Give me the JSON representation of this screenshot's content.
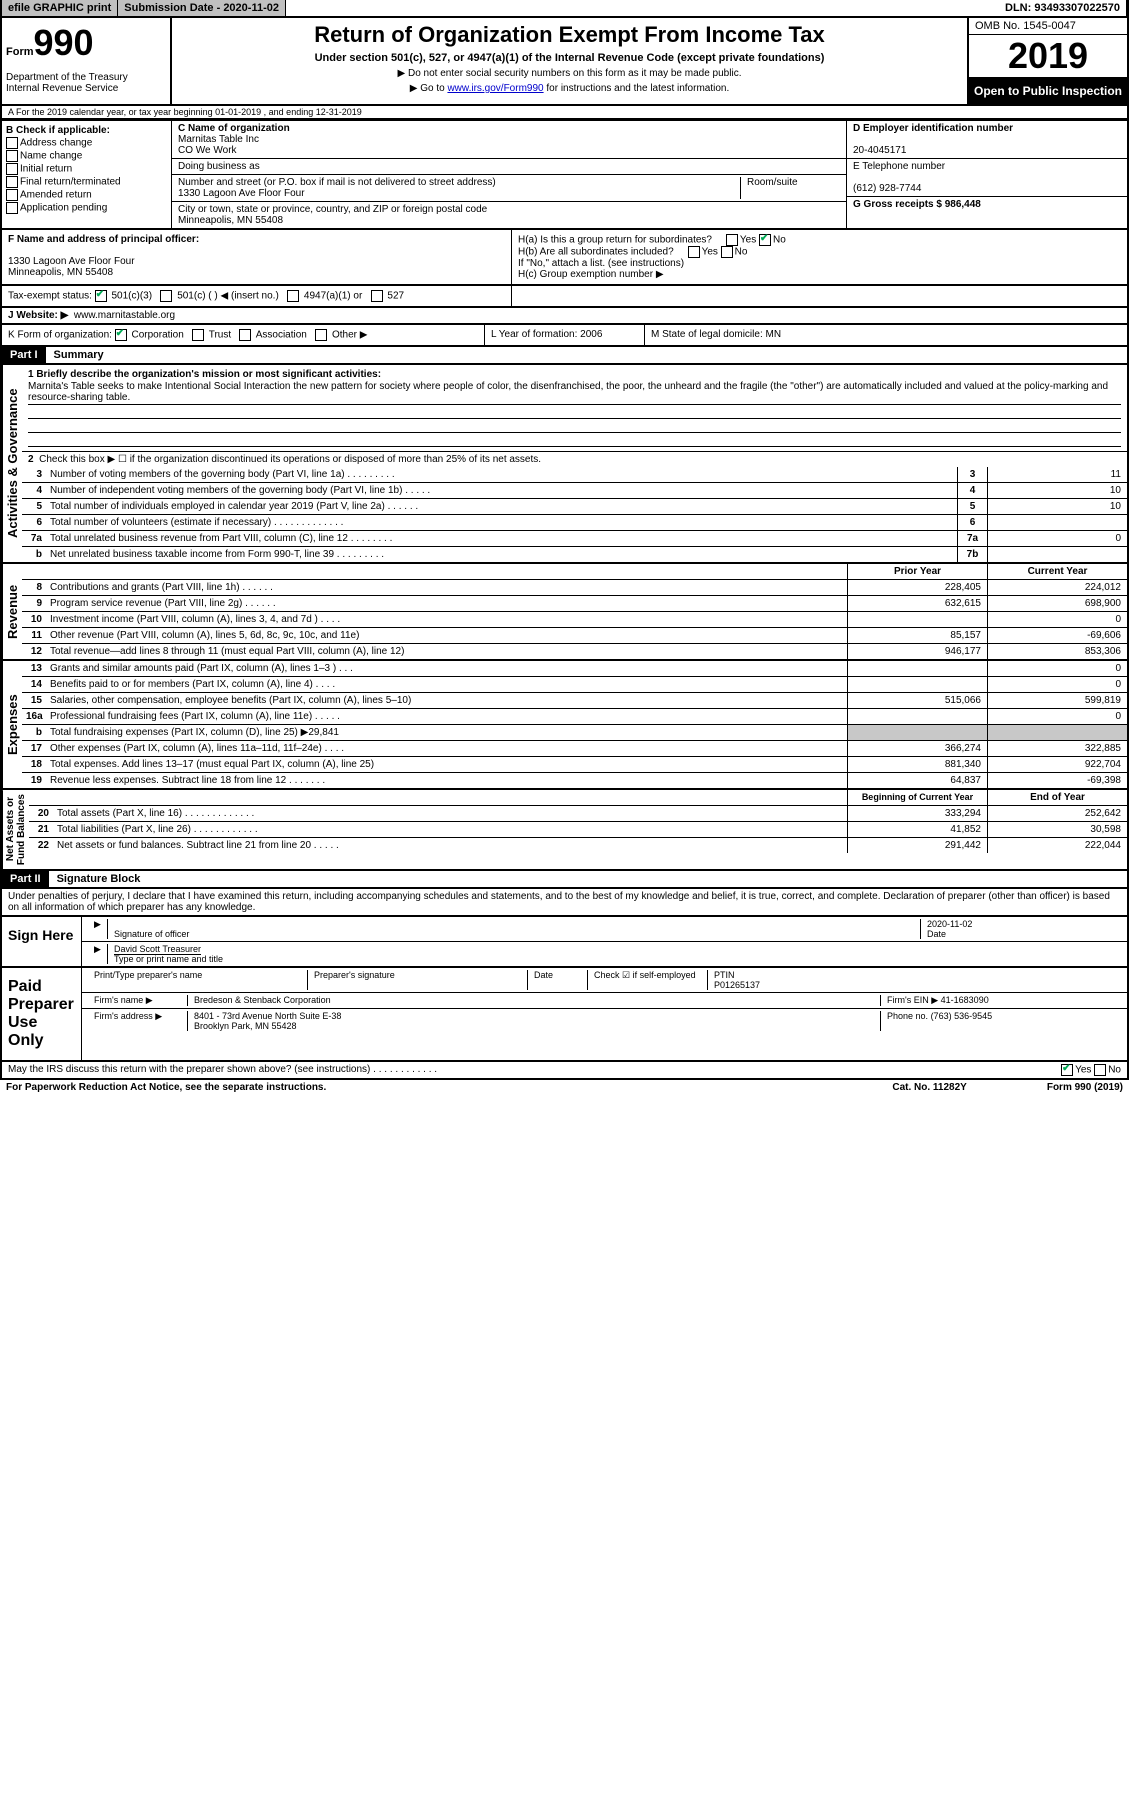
{
  "top": {
    "efile": "efile GRAPHIC print",
    "submission": "Submission Date - 2020-11-02",
    "dln": "DLN: 93493307022570"
  },
  "header": {
    "form_word": "Form",
    "form_num": "990",
    "dept": "Department of the Treasury\nInternal Revenue Service",
    "title": "Return of Organization Exempt From Income Tax",
    "subtitle": "Under section 501(c), 527, or 4947(a)(1) of the Internal Revenue Code (except private foundations)",
    "line1": "▶ Do not enter social security numbers on this form as it may be made public.",
    "line2_pre": "▶ Go to ",
    "line2_link": "www.irs.gov/Form990",
    "line2_post": " for instructions and the latest information.",
    "omb": "OMB No. 1545-0047",
    "year": "2019",
    "open": "Open to Public Inspection"
  },
  "periodA": "A For the 2019 calendar year, or tax year beginning 01-01-2019   , and ending 12-31-2019",
  "colB": {
    "hdr": "B Check if applicable:",
    "opts": [
      "Address change",
      "Name change",
      "Initial return",
      "Final return/terminated",
      "Amended return",
      "Application pending"
    ]
  },
  "colC": {
    "name_lbl": "C Name of organization",
    "name1": "Marnitas Table Inc",
    "name2": "CO We Work",
    "dba_lbl": "Doing business as",
    "addr_lbl": "Number and street (or P.O. box if mail is not delivered to street address)",
    "addr": "1330 Lagoon Ave Floor Four",
    "room_lbl": "Room/suite",
    "city_lbl": "City or town, state or province, country, and ZIP or foreign postal code",
    "city": "Minneapolis, MN  55408"
  },
  "colD": {
    "ein_lbl": "D Employer identification number",
    "ein": "20-4045171",
    "tel_lbl": "E Telephone number",
    "tel": "(612) 928-7744",
    "gross_lbl": "G Gross receipts $ 986,448"
  },
  "rowF": {
    "lbl": "F  Name and address of principal officer:",
    "addr": "1330 Lagoon Ave Floor Four\nMinneapolis, MN  55408"
  },
  "rowH": {
    "a": "H(a)  Is this a group return for subordinates?",
    "b": "H(b)  Are all subordinates included?",
    "ifno": "If \"No,\" attach a list. (see instructions)",
    "c": "H(c)  Group exemption number ▶"
  },
  "rowI": {
    "lbl": "Tax-exempt status:",
    "o1": "501(c)(3)",
    "o2": "501(c) (   ) ◀ (insert no.)",
    "o3": "4947(a)(1) or",
    "o4": "527"
  },
  "rowJ": {
    "lbl": "J   Website: ▶",
    "val": "www.marnitastable.org"
  },
  "rowK": {
    "lbl": "K Form of organization:",
    "o1": "Corporation",
    "o2": "Trust",
    "o3": "Association",
    "o4": "Other ▶"
  },
  "rowL": {
    "lbl": "L Year of formation: 2006"
  },
  "rowM": {
    "lbl": "M State of legal domicile: MN"
  },
  "part1": {
    "hdr": "Part I",
    "title": "Summary"
  },
  "summary": {
    "q1_lbl": "1  Briefly describe the organization's mission or most significant activities:",
    "q1_txt": "Marnita's Table seeks to make Intentional Social Interaction the new pattern for society where people of color, the disenfranchised, the poor, the unheard and the fragile (the \"other\") are automatically included and valued at the policy-marking and resource-sharing table.",
    "q2": "Check this box ▶ ☐  if the organization discontinued its operations or disposed of more than 25% of its net assets.",
    "rows_gov": [
      {
        "n": "3",
        "lbl": "Number of voting members of the governing body (Part VI, line 1a)  .  .  .  .  .  .  .  .  .",
        "box": "3",
        "v": "11"
      },
      {
        "n": "4",
        "lbl": "Number of independent voting members of the governing body (Part VI, line 1b)  .  .  .  .  .",
        "box": "4",
        "v": "10"
      },
      {
        "n": "5",
        "lbl": "Total number of individuals employed in calendar year 2019 (Part V, line 2a)  .  .  .  .  .  .",
        "box": "5",
        "v": "10"
      },
      {
        "n": "6",
        "lbl": "Total number of volunteers (estimate if necessary)  .  .  .  .  .  .  .  .  .  .  .  .  .",
        "box": "6",
        "v": ""
      },
      {
        "n": "7a",
        "lbl": "Total unrelated business revenue from Part VIII, column (C), line 12  .  .  .  .  .  .  .  .",
        "box": "7a",
        "v": "0"
      },
      {
        "n": "b",
        "lbl": "Net unrelated business taxable income from Form 990-T, line 39  .  .  .  .  .  .  .  .  .",
        "box": "7b",
        "v": ""
      }
    ],
    "colhdr": {
      "py": "Prior Year",
      "cy": "Current Year"
    },
    "rows_rev": [
      {
        "n": "8",
        "lbl": "Contributions and grants (Part VIII, line 1h)  .  .  .  .  .  .",
        "py": "228,405",
        "cy": "224,012"
      },
      {
        "n": "9",
        "lbl": "Program service revenue (Part VIII, line 2g)  .  .  .  .  .  .",
        "py": "632,615",
        "cy": "698,900"
      },
      {
        "n": "10",
        "lbl": "Investment income (Part VIII, column (A), lines 3, 4, and 7d )  .  .  .  .",
        "py": "",
        "cy": "0"
      },
      {
        "n": "11",
        "lbl": "Other revenue (Part VIII, column (A), lines 5, 6d, 8c, 9c, 10c, and 11e)",
        "py": "85,157",
        "cy": "-69,606"
      },
      {
        "n": "12",
        "lbl": "Total revenue—add lines 8 through 11 (must equal Part VIII, column (A), line 12)",
        "py": "946,177",
        "cy": "853,306"
      }
    ],
    "rows_exp": [
      {
        "n": "13",
        "lbl": "Grants and similar amounts paid (Part IX, column (A), lines 1–3 )  .  .  .",
        "py": "",
        "cy": "0"
      },
      {
        "n": "14",
        "lbl": "Benefits paid to or for members (Part IX, column (A), line 4)  .  .  .  .",
        "py": "",
        "cy": "0"
      },
      {
        "n": "15",
        "lbl": "Salaries, other compensation, employee benefits (Part IX, column (A), lines 5–10)",
        "py": "515,066",
        "cy": "599,819"
      },
      {
        "n": "16a",
        "lbl": "Professional fundraising fees (Part IX, column (A), line 11e)  .  .  .  .  .",
        "py": "",
        "cy": "0"
      },
      {
        "n": "b",
        "lbl": "Total fundraising expenses (Part IX, column (D), line 25) ▶29,841",
        "py": "shaded",
        "cy": "shaded"
      },
      {
        "n": "17",
        "lbl": "Other expenses (Part IX, column (A), lines 11a–11d, 11f–24e)  .  .  .  .",
        "py": "366,274",
        "cy": "322,885"
      },
      {
        "n": "18",
        "lbl": "Total expenses. Add lines 13–17 (must equal Part IX, column (A), line 25)",
        "py": "881,340",
        "cy": "922,704"
      },
      {
        "n": "19",
        "lbl": "Revenue less expenses. Subtract line 18 from line 12 .  .  .  .  .  .  .",
        "py": "64,837",
        "cy": "-69,398"
      }
    ],
    "colhdr2": {
      "py": "Beginning of Current Year",
      "cy": "End of Year"
    },
    "rows_net": [
      {
        "n": "20",
        "lbl": "Total assets (Part X, line 16)  .  .  .  .  .  .  .  .  .  .  .  .  .",
        "py": "333,294",
        "cy": "252,642"
      },
      {
        "n": "21",
        "lbl": "Total liabilities (Part X, line 26)  .  .  .  .  .  .  .  .  .  .  .  .",
        "py": "41,852",
        "cy": "30,598"
      },
      {
        "n": "22",
        "lbl": "Net assets or fund balances. Subtract line 21 from line 20  .  .  .  .  .",
        "py": "291,442",
        "cy": "222,044"
      }
    ]
  },
  "vlabels": {
    "gov": "Activities & Governance",
    "rev": "Revenue",
    "exp": "Expenses",
    "net": "Net Assets or\nFund Balances"
  },
  "part2": {
    "hdr": "Part II",
    "title": "Signature Block"
  },
  "sigtext": "Under penalties of perjury, I declare that I have examined this return, including accompanying schedules and statements, and to the best of my knowledge and belief, it is true, correct, and complete. Declaration of preparer (other than officer) is based on all information of which preparer has any knowledge.",
  "sign": {
    "left": "Sign Here",
    "sig_lbl": "Signature of officer",
    "date_lbl": "Date",
    "date": "2020-11-02",
    "name": "David Scott  Treasurer",
    "name_lbl": "Type or print name and title"
  },
  "paid": {
    "left": "Paid Preparer Use Only",
    "c1": "Print/Type preparer's name",
    "c2": "Preparer's signature",
    "c3": "Date",
    "c4": "Check ☑ if self-employed",
    "ptin_lbl": "PTIN",
    "ptin": "P01265137",
    "firm_lbl": "Firm's name   ▶",
    "firm": "Bredeson & Stenback Corporation",
    "ein_lbl": "Firm's EIN ▶",
    "ein": "41-1683090",
    "addr_lbl": "Firm's address ▶",
    "addr1": "8401 - 73rd Avenue North Suite E-38",
    "addr2": "Brooklyn Park, MN  55428",
    "phone_lbl": "Phone no.",
    "phone": "(763) 536-9545"
  },
  "discuss": "May the IRS discuss this return with the preparer shown above? (see instructions)  .  .  .  .  .  .  .  .  .  .  .  .",
  "footer": {
    "left": "For Paperwork Reduction Act Notice, see the separate instructions.",
    "mid": "Cat. No. 11282Y",
    "right": "Form 990 (2019)"
  }
}
